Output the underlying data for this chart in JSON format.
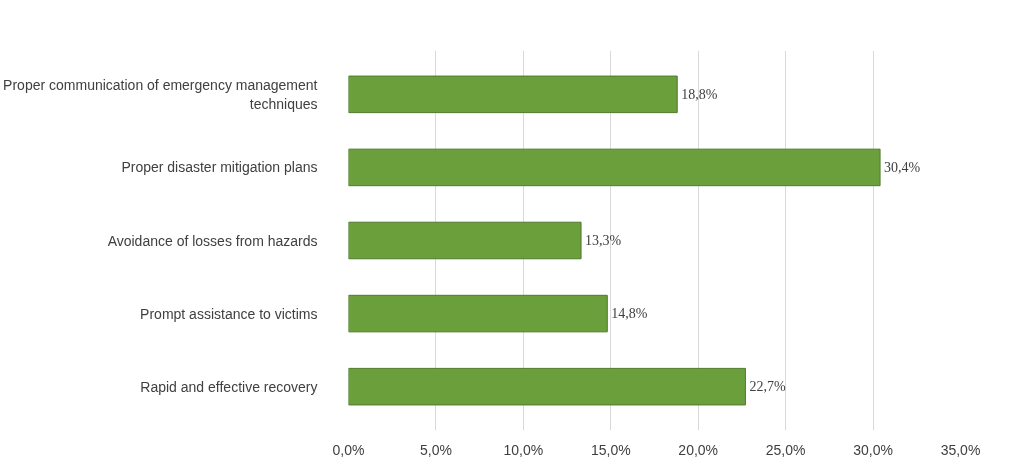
{
  "chart_data": {
    "type": "bar",
    "orientation": "horizontal",
    "categories": [
      "Proper communication of emergency management techniques",
      "Proper disaster mitigation plans",
      "Avoidance of losses from hazards",
      "Prompt assistance to victims",
      "Rapid and effective recovery"
    ],
    "values": [
      18.8,
      30.4,
      13.3,
      14.8,
      22.7
    ],
    "value_labels": [
      "18,8%",
      "30,4%",
      "13,3%",
      "14,8%",
      "22,7%"
    ],
    "color": "#6a9f3c",
    "xlim": [
      0,
      35
    ],
    "xticks": [
      {
        "value": 0,
        "label": "0,0%"
      },
      {
        "value": 5,
        "label": "5,0%"
      },
      {
        "value": 10,
        "label": "10,0%"
      },
      {
        "value": 15,
        "label": "15,0%"
      },
      {
        "value": 20,
        "label": "20,0%"
      },
      {
        "value": 25,
        "label": "25,0%"
      },
      {
        "value": 30,
        "label": "30,0%"
      },
      {
        "value": 35,
        "label": "35,0%"
      }
    ],
    "grid": "x"
  }
}
